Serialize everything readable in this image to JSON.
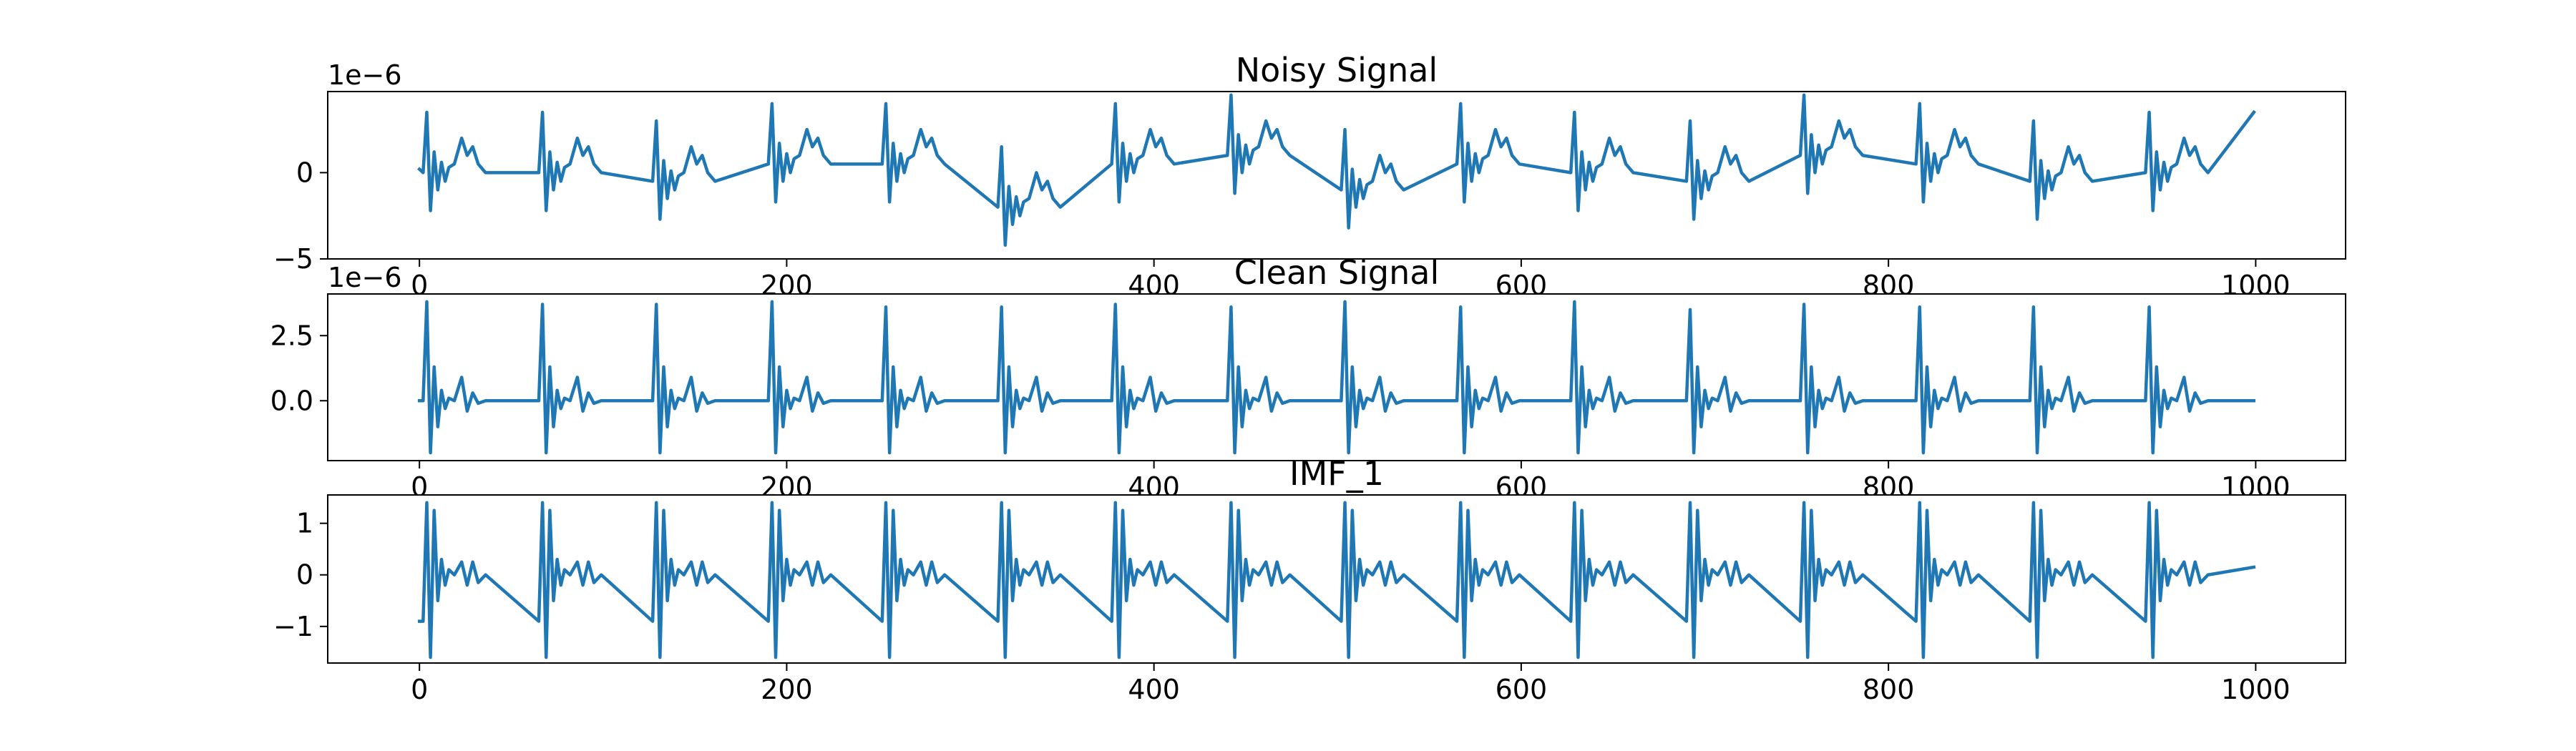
{
  "chart_data": [
    {
      "type": "line",
      "title": "Noisy Signal",
      "offset_text": "1e−6",
      "color": "#1f77b4",
      "x": [
        0,
        2,
        4,
        6,
        8,
        10,
        12,
        14,
        16,
        19,
        23,
        26,
        29,
        32,
        36,
        65,
        67,
        69,
        71,
        73,
        75,
        77,
        79,
        82,
        86,
        89,
        92,
        95,
        99,
        127,
        129,
        131,
        133,
        135,
        137,
        139,
        141,
        144,
        148,
        151,
        154,
        157,
        161,
        190,
        192,
        194,
        196,
        198,
        200,
        202,
        204,
        207,
        211,
        214,
        217,
        220,
        224,
        252,
        254,
        256,
        258,
        260,
        262,
        264,
        266,
        269,
        273,
        276,
        279,
        282,
        286,
        315,
        317,
        319,
        321,
        323,
        325,
        327,
        329,
        332,
        336,
        339,
        342,
        345,
        349,
        377,
        379,
        381,
        383,
        385,
        387,
        389,
        391,
        394,
        398,
        401,
        404,
        407,
        411,
        440,
        442,
        444,
        446,
        448,
        450,
        452,
        454,
        457,
        461,
        464,
        467,
        470,
        474,
        502,
        504,
        506,
        508,
        510,
        512,
        514,
        516,
        519,
        523,
        526,
        529,
        532,
        536,
        565,
        567,
        569,
        571,
        573,
        575,
        577,
        579,
        582,
        586,
        589,
        592,
        595,
        599,
        627,
        629,
        631,
        633,
        635,
        637,
        639,
        641,
        644,
        648,
        651,
        654,
        657,
        661,
        690,
        692,
        694,
        696,
        698,
        700,
        702,
        704,
        707,
        711,
        714,
        717,
        720,
        724,
        752,
        754,
        756,
        758,
        760,
        762,
        764,
        766,
        769,
        773,
        776,
        779,
        782,
        786,
        815,
        817,
        819,
        821,
        823,
        825,
        827,
        829,
        832,
        836,
        839,
        842,
        845,
        849,
        877,
        879,
        881,
        883,
        885,
        887,
        889,
        891,
        894,
        898,
        901,
        904,
        907,
        911,
        940,
        942,
        944,
        946,
        948,
        950,
        952,
        954,
        957,
        961,
        964,
        967,
        970,
        974,
        999
      ],
      "values": [
        0.2,
        0,
        3.5,
        -2.2,
        1.2,
        -1,
        0.6,
        -0.5,
        0.3,
        0.5,
        2,
        1,
        1.5,
        0.5,
        0,
        0,
        3.5,
        -2.2,
        1.2,
        -1,
        0.6,
        -0.5,
        0.3,
        0.5,
        2,
        1,
        1.5,
        0.5,
        0,
        -0.5,
        3,
        -2.7,
        0.7,
        -1.5,
        0.1,
        -1,
        -0.2,
        0,
        1.5,
        0.5,
        1,
        0,
        -0.5,
        0.5,
        4,
        -1.7,
        1.7,
        -0.5,
        1.1,
        0,
        0.8,
        1,
        2.5,
        1.5,
        2,
        1,
        0.5,
        0.5,
        4,
        -1.7,
        1.7,
        -0.5,
        1.1,
        0,
        0.8,
        1,
        2.5,
        1.5,
        2,
        1,
        0.5,
        -2,
        1.5,
        -4.2,
        -0.8,
        -3,
        -1.4,
        -2.5,
        -1.7,
        -1.5,
        0,
        -1,
        -0.5,
        -1.5,
        -2,
        0.5,
        4,
        -1.7,
        1.7,
        -0.5,
        1.1,
        0,
        0.8,
        1,
        2.5,
        1.5,
        2,
        1,
        0.5,
        1,
        4.5,
        -1.2,
        2.2,
        0,
        1.6,
        0.5,
        1.3,
        1.5,
        3,
        2,
        2.5,
        1.5,
        1,
        -1,
        2.5,
        -3.2,
        0.2,
        -2,
        -0.4,
        -1.5,
        -0.7,
        -0.5,
        1,
        0,
        0.5,
        -0.5,
        -1,
        0.5,
        4,
        -1.7,
        1.7,
        -0.5,
        1.1,
        0,
        0.8,
        1,
        2.5,
        1.5,
        2,
        1,
        0.5,
        0,
        3.5,
        -2.2,
        1.2,
        -1,
        0.6,
        -0.5,
        0.3,
        0.5,
        2,
        1,
        1.5,
        0.5,
        0,
        -0.5,
        3,
        -2.7,
        0.7,
        -1.5,
        0.1,
        -1,
        -0.2,
        0,
        1.5,
        0.5,
        1,
        0,
        -0.5,
        1,
        4.5,
        -1.2,
        2.2,
        0,
        1.6,
        0.5,
        1.3,
        1.5,
        3,
        2,
        2.5,
        1.5,
        1,
        0.5,
        4,
        -1.7,
        1.7,
        -0.5,
        1.1,
        0,
        0.8,
        1,
        2.5,
        1.5,
        2,
        1,
        0.5,
        -0.5,
        3,
        -2.7,
        0.7,
        -1.5,
        0.1,
        -1,
        -0.2,
        0,
        1.5,
        0.5,
        1,
        0,
        -0.5,
        0,
        3.5,
        -2.2,
        1.2,
        -1,
        0.6,
        -0.5,
        0.3,
        0.5,
        2,
        1,
        1.5,
        0.5,
        0,
        3.5
      ],
      "xlim": [
        -49.95,
        1048.95
      ],
      "xticks": [
        0,
        200,
        400,
        600,
        800,
        1000
      ],
      "ylim": [
        -5.0,
        4.7
      ],
      "yticks": [
        {
          "value": -5,
          "label": "−5"
        },
        0
      ]
    },
    {
      "type": "line",
      "title": "Clean Signal",
      "offset_text": "1e−6",
      "color": "#1f77b4",
      "x": [
        0,
        2,
        4,
        6,
        8,
        10,
        12,
        14,
        16,
        19,
        23,
        26,
        29,
        32,
        36,
        65,
        67,
        69,
        71,
        73,
        75,
        77,
        79,
        82,
        86,
        89,
        92,
        95,
        99,
        127,
        129,
        131,
        133,
        135,
        137,
        139,
        141,
        144,
        148,
        151,
        154,
        157,
        161,
        190,
        192,
        194,
        196,
        198,
        200,
        202,
        204,
        207,
        211,
        214,
        217,
        220,
        224,
        252,
        254,
        256,
        258,
        260,
        262,
        264,
        266,
        269,
        273,
        276,
        279,
        282,
        286,
        315,
        317,
        319,
        321,
        323,
        325,
        327,
        329,
        332,
        336,
        339,
        342,
        345,
        349,
        377,
        379,
        381,
        383,
        385,
        387,
        389,
        391,
        394,
        398,
        401,
        404,
        407,
        411,
        440,
        442,
        444,
        446,
        448,
        450,
        452,
        454,
        457,
        461,
        464,
        467,
        470,
        474,
        502,
        504,
        506,
        508,
        510,
        512,
        514,
        516,
        519,
        523,
        526,
        529,
        532,
        536,
        565,
        567,
        569,
        571,
        573,
        575,
        577,
        579,
        582,
        586,
        589,
        592,
        595,
        599,
        627,
        629,
        631,
        633,
        635,
        637,
        639,
        641,
        644,
        648,
        651,
        654,
        657,
        661,
        690,
        692,
        694,
        696,
        698,
        700,
        702,
        704,
        707,
        711,
        714,
        717,
        720,
        724,
        752,
        754,
        756,
        758,
        760,
        762,
        764,
        766,
        769,
        773,
        776,
        779,
        782,
        786,
        815,
        817,
        819,
        821,
        823,
        825,
        827,
        829,
        832,
        836,
        839,
        842,
        845,
        849,
        877,
        879,
        881,
        883,
        885,
        887,
        889,
        891,
        894,
        898,
        901,
        904,
        907,
        911,
        940,
        942,
        944,
        946,
        948,
        950,
        952,
        954,
        957,
        961,
        964,
        967,
        970,
        974,
        999
      ],
      "values": [
        0,
        0,
        3.8,
        -2,
        1.3,
        -1,
        0.4,
        -0.3,
        0.1,
        0,
        0.9,
        -0.4,
        0.3,
        -0.1,
        0,
        0,
        3.7,
        -2,
        1.3,
        -1,
        0.4,
        -0.3,
        0.1,
        0,
        0.9,
        -0.4,
        0.3,
        -0.1,
        0,
        0,
        3.7,
        -2,
        1.3,
        -1,
        0.4,
        -0.3,
        0.1,
        0,
        0.9,
        -0.4,
        0.3,
        -0.1,
        0,
        0,
        3.8,
        -2,
        1.3,
        -1,
        0.4,
        -0.3,
        0.1,
        0,
        0.9,
        -0.4,
        0.3,
        -0.1,
        0,
        0,
        3.6,
        -2,
        1.3,
        -1,
        0.4,
        -0.3,
        0.1,
        0,
        0.9,
        -0.4,
        0.3,
        -0.1,
        0,
        0,
        3.6,
        -2,
        1.3,
        -1,
        0.4,
        -0.3,
        0.1,
        0,
        0.9,
        -0.4,
        0.3,
        -0.1,
        0,
        0,
        3.7,
        -2,
        1.3,
        -1,
        0.4,
        -0.3,
        0.1,
        0,
        0.9,
        -0.4,
        0.3,
        -0.1,
        0,
        0,
        3.6,
        -2,
        1.3,
        -1,
        0.4,
        -0.3,
        0.1,
        0,
        0.9,
        -0.4,
        0.3,
        -0.1,
        0,
        0,
        3.8,
        -2,
        1.3,
        -1,
        0.4,
        -0.3,
        0.1,
        0,
        0.9,
        -0.4,
        0.3,
        -0.1,
        0,
        0,
        3.6,
        -2,
        1.3,
        -1,
        0.4,
        -0.3,
        0.1,
        0,
        0.9,
        -0.4,
        0.3,
        -0.1,
        0,
        0,
        3.8,
        -2,
        1.3,
        -1,
        0.4,
        -0.3,
        0.1,
        0,
        0.9,
        -0.4,
        0.3,
        -0.1,
        0,
        0,
        3.5,
        -2,
        1.3,
        -1,
        0.4,
        -0.3,
        0.1,
        0,
        0.9,
        -0.4,
        0.3,
        -0.1,
        0,
        0,
        3.7,
        -2,
        1.3,
        -1,
        0.4,
        -0.3,
        0.1,
        0,
        0.9,
        -0.4,
        0.3,
        -0.1,
        0,
        0,
        3.6,
        -2,
        1.3,
        -1,
        0.4,
        -0.3,
        0.1,
        0,
        0.9,
        -0.4,
        0.3,
        -0.1,
        0,
        0,
        3.6,
        -2,
        1.3,
        -1,
        0.4,
        -0.3,
        0.1,
        0,
        0.9,
        -0.4,
        0.3,
        -0.1,
        0,
        0,
        3.6,
        -2,
        1.3,
        -1,
        0.4,
        -0.3,
        0.1,
        0,
        0.9,
        -0.4,
        0.3,
        -0.1,
        0,
        0
      ],
      "xlim": [
        -49.95,
        1048.95
      ],
      "xticks": [
        0,
        200,
        400,
        600,
        800,
        1000
      ],
      "ylim": [
        -2.3,
        4.1
      ],
      "yticks": [
        {
          "value": 0,
          "label": "0.0"
        },
        2.5
      ]
    },
    {
      "type": "line",
      "title": "IMF_1",
      "color": "#1f77b4",
      "x": [
        0,
        2,
        4,
        6,
        8,
        10,
        12,
        14,
        16,
        19,
        23,
        26,
        29,
        32,
        36,
        65,
        67,
        69,
        71,
        73,
        75,
        77,
        79,
        82,
        86,
        89,
        92,
        95,
        99,
        127,
        129,
        131,
        133,
        135,
        137,
        139,
        141,
        144,
        148,
        151,
        154,
        157,
        161,
        190,
        192,
        194,
        196,
        198,
        200,
        202,
        204,
        207,
        211,
        214,
        217,
        220,
        224,
        252,
        254,
        256,
        258,
        260,
        262,
        264,
        266,
        269,
        273,
        276,
        279,
        282,
        286,
        315,
        317,
        319,
        321,
        323,
        325,
        327,
        329,
        332,
        336,
        339,
        342,
        345,
        349,
        377,
        379,
        381,
        383,
        385,
        387,
        389,
        391,
        394,
        398,
        401,
        404,
        407,
        411,
        440,
        442,
        444,
        446,
        448,
        450,
        452,
        454,
        457,
        461,
        464,
        467,
        470,
        474,
        502,
        504,
        506,
        508,
        510,
        512,
        514,
        516,
        519,
        523,
        526,
        529,
        532,
        536,
        565,
        567,
        569,
        571,
        573,
        575,
        577,
        579,
        582,
        586,
        589,
        592,
        595,
        599,
        627,
        629,
        631,
        633,
        635,
        637,
        639,
        641,
        644,
        648,
        651,
        654,
        657,
        661,
        690,
        692,
        694,
        696,
        698,
        700,
        702,
        704,
        707,
        711,
        714,
        717,
        720,
        724,
        752,
        754,
        756,
        758,
        760,
        762,
        764,
        766,
        769,
        773,
        776,
        779,
        782,
        786,
        815,
        817,
        819,
        821,
        823,
        825,
        827,
        829,
        832,
        836,
        839,
        842,
        845,
        849,
        877,
        879,
        881,
        883,
        885,
        887,
        889,
        891,
        894,
        898,
        901,
        904,
        907,
        911,
        940,
        942,
        944,
        946,
        948,
        950,
        952,
        954,
        957,
        961,
        964,
        967,
        970,
        974,
        999
      ],
      "values": [
        -0.9,
        -0.9,
        1.4,
        -1.6,
        1.25,
        -0.5,
        0.3,
        -0.2,
        0.1,
        0,
        0.25,
        -0.2,
        0.25,
        -0.15,
        0,
        -0.9,
        1.4,
        -1.6,
        1.25,
        -0.5,
        0.3,
        -0.2,
        0.1,
        0,
        0.25,
        -0.2,
        0.25,
        -0.15,
        0,
        -0.9,
        1.4,
        -1.6,
        1.25,
        -0.5,
        0.3,
        -0.2,
        0.1,
        0,
        0.25,
        -0.2,
        0.25,
        -0.15,
        0,
        -0.9,
        1.4,
        -1.6,
        1.25,
        -0.5,
        0.3,
        -0.2,
        0.1,
        0,
        0.25,
        -0.2,
        0.25,
        -0.15,
        0,
        -0.9,
        1.4,
        -1.6,
        1.25,
        -0.5,
        0.3,
        -0.2,
        0.1,
        0,
        0.25,
        -0.2,
        0.25,
        -0.15,
        0,
        -0.9,
        1.4,
        -1.6,
        1.25,
        -0.5,
        0.3,
        -0.2,
        0.1,
        0,
        0.25,
        -0.2,
        0.25,
        -0.15,
        0,
        -0.9,
        1.4,
        -1.6,
        1.25,
        -0.5,
        0.3,
        -0.2,
        0.1,
        0,
        0.25,
        -0.2,
        0.25,
        -0.15,
        0,
        -0.9,
        1.4,
        -1.6,
        1.25,
        -0.5,
        0.3,
        -0.2,
        0.1,
        0,
        0.25,
        -0.2,
        0.25,
        -0.15,
        0,
        -0.9,
        1.4,
        -1.6,
        1.25,
        -0.5,
        0.3,
        -0.2,
        0.1,
        0,
        0.25,
        -0.2,
        0.25,
        -0.15,
        0,
        -0.9,
        1.4,
        -1.6,
        1.25,
        -0.5,
        0.3,
        -0.2,
        0.1,
        0,
        0.25,
        -0.2,
        0.25,
        -0.15,
        0,
        -0.9,
        1.4,
        -1.6,
        1.25,
        -0.5,
        0.3,
        -0.2,
        0.1,
        0,
        0.25,
        -0.2,
        0.25,
        -0.15,
        0,
        -0.9,
        1.4,
        -1.6,
        1.25,
        -0.5,
        0.3,
        -0.2,
        0.1,
        0,
        0.25,
        -0.2,
        0.25,
        -0.15,
        0,
        -0.9,
        1.4,
        -1.6,
        1.25,
        -0.5,
        0.3,
        -0.2,
        0.1,
        0,
        0.25,
        -0.2,
        0.25,
        -0.15,
        0,
        -0.9,
        1.4,
        -1.6,
        1.25,
        -0.5,
        0.3,
        -0.2,
        0.1,
        0,
        0.25,
        -0.2,
        0.25,
        -0.15,
        0,
        -0.9,
        1.4,
        -1.6,
        1.25,
        -0.5,
        0.3,
        -0.2,
        0.1,
        0,
        0.25,
        -0.2,
        0.25,
        -0.15,
        0,
        -0.9,
        1.4,
        -1.6,
        1.25,
        -0.5,
        0.3,
        -0.2,
        0.1,
        0,
        0.25,
        -0.2,
        0.25,
        -0.15,
        0,
        0.15
      ],
      "xlim": [
        -49.95,
        1048.95
      ],
      "xticks": [
        0,
        200,
        400,
        600,
        800,
        1000
      ],
      "ylim": [
        -1.71,
        1.55
      ],
      "yticks": [
        {
          "value": -1,
          "label": "−1"
        },
        0,
        1
      ]
    }
  ]
}
